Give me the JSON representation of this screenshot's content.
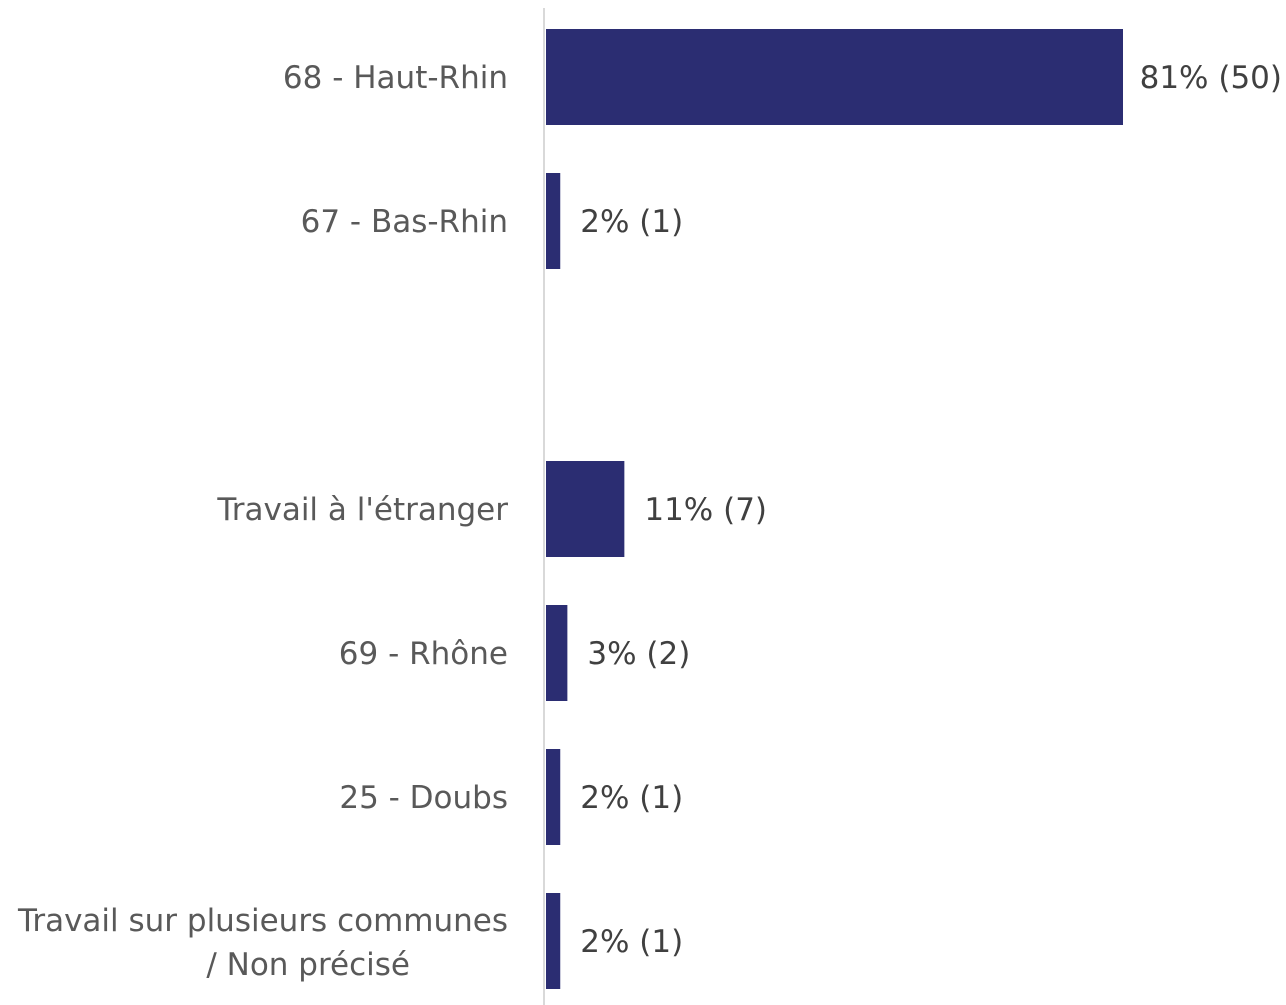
{
  "chart_data": {
    "type": "bar",
    "orientation": "horizontal",
    "categories": [
      "68 - Haut-Rhin",
      "67 - Bas-Rhin",
      "",
      "Travail à l'étranger",
      "69 - Rhône",
      "25 - Doubs",
      "Travail sur plusieurs communes / Non précisé"
    ],
    "values": [
      81,
      2,
      null,
      11,
      3,
      2,
      2
    ],
    "counts": [
      50,
      1,
      null,
      7,
      2,
      1,
      1
    ],
    "data_labels": [
      "81% (50)",
      "2% (1)",
      "",
      "11% (7)",
      "3% (2)",
      "2% (1)",
      "2% (1)"
    ],
    "unit": "%",
    "xlim": [
      0,
      100
    ],
    "grid": false,
    "legend": "none",
    "bar_color": "#2B2D72",
    "axis_color": "#D9D9D9"
  }
}
